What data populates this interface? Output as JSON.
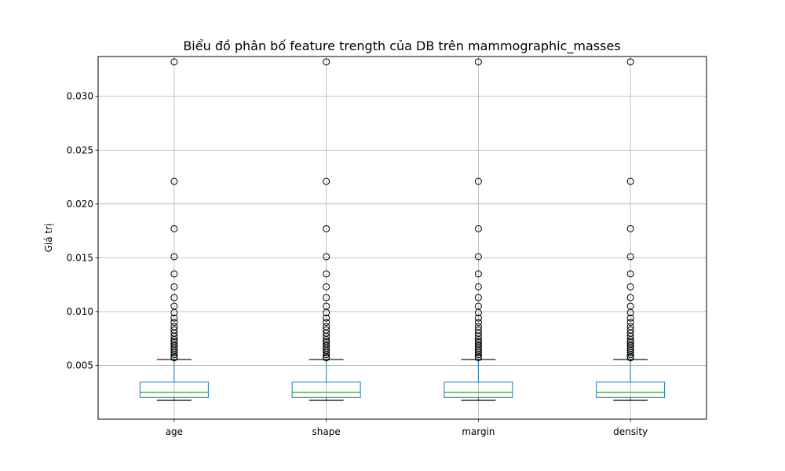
{
  "chart_data": {
    "type": "box",
    "title": "Biểu đồ phân bố feature trength của DB trên mammographic_masses",
    "xlabel": "",
    "ylabel": "Giá trị",
    "ylim": [
      0.0,
      0.0337
    ],
    "yticks": [
      0.005,
      0.01,
      0.015,
      0.02,
      0.025,
      0.03
    ],
    "ytick_labels": [
      "0.005",
      "0.010",
      "0.015",
      "0.020",
      "0.025",
      "0.030"
    ],
    "grid": true,
    "colors": {
      "box": "#1f77b4",
      "median": "#2ca02c",
      "whisker": "#1f77b4",
      "cap": "#000000",
      "flier": "#000000",
      "grid": "#b0b0b0"
    },
    "categories": [
      "age",
      "shape",
      "margin",
      "density"
    ],
    "series": [
      {
        "whisker_low": 0.00175,
        "q1": 0.00202,
        "median": 0.0025,
        "q3": 0.00345,
        "whisker_high": 0.00555,
        "outliers": [
          0.0332,
          0.0221,
          0.0177,
          0.0151,
          0.0135,
          0.0123,
          0.0113,
          0.0105,
          0.0099,
          0.0094,
          0.009,
          0.0086,
          0.0083,
          0.008,
          0.0077,
          0.0074,
          0.0072,
          0.007,
          0.0068,
          0.0066,
          0.0064,
          0.0062,
          0.006,
          0.0058,
          0.0057
        ]
      },
      {
        "whisker_low": 0.00175,
        "q1": 0.00202,
        "median": 0.0025,
        "q3": 0.00345,
        "whisker_high": 0.00555,
        "outliers": [
          0.0332,
          0.0221,
          0.0177,
          0.0151,
          0.0135,
          0.0123,
          0.0113,
          0.0105,
          0.0099,
          0.0094,
          0.009,
          0.0086,
          0.0083,
          0.008,
          0.0077,
          0.0074,
          0.0072,
          0.007,
          0.0068,
          0.0066,
          0.0064,
          0.0062,
          0.006,
          0.0058,
          0.0057
        ]
      },
      {
        "whisker_low": 0.00175,
        "q1": 0.00202,
        "median": 0.0025,
        "q3": 0.00345,
        "whisker_high": 0.00555,
        "outliers": [
          0.0332,
          0.0221,
          0.0177,
          0.0151,
          0.0135,
          0.0123,
          0.0113,
          0.0105,
          0.0099,
          0.0094,
          0.009,
          0.0086,
          0.0083,
          0.008,
          0.0077,
          0.0074,
          0.0072,
          0.007,
          0.0068,
          0.0066,
          0.0064,
          0.0062,
          0.006,
          0.0058,
          0.0057
        ]
      },
      {
        "whisker_low": 0.00175,
        "q1": 0.00202,
        "median": 0.0025,
        "q3": 0.00345,
        "whisker_high": 0.00555,
        "outliers": [
          0.0332,
          0.0221,
          0.0177,
          0.0151,
          0.0135,
          0.0123,
          0.0113,
          0.0105,
          0.0099,
          0.0094,
          0.009,
          0.0086,
          0.0083,
          0.008,
          0.0077,
          0.0074,
          0.0072,
          0.007,
          0.0068,
          0.0066,
          0.0064,
          0.0062,
          0.006,
          0.0058,
          0.0057
        ]
      }
    ]
  }
}
